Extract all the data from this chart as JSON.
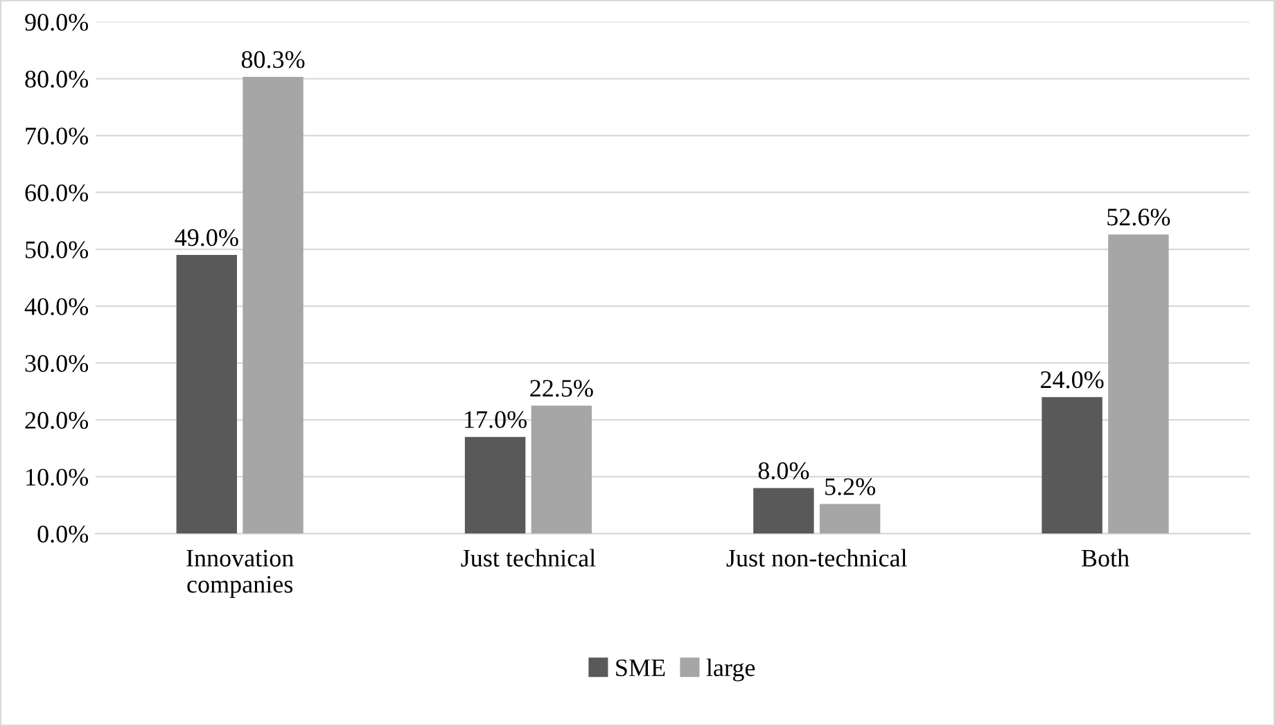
{
  "chart_data": {
    "type": "bar",
    "categories": [
      "Innovation\ncompanies",
      "Just technical",
      "Just non-technical",
      "Both"
    ],
    "series": [
      {
        "name": "SME",
        "color": "#595959",
        "values": [
          49.0,
          17.0,
          8.0,
          24.0
        ],
        "value_labels": [
          "49.0%",
          "17.0%",
          "8.0%",
          "24.0%"
        ]
      },
      {
        "name": "large",
        "color": "#a6a6a6",
        "values": [
          80.3,
          22.5,
          5.2,
          52.6
        ],
        "value_labels": [
          "80.3%",
          "22.5%",
          "5.2%",
          "52.6%"
        ]
      }
    ],
    "ylim": [
      0,
      90
    ],
    "yticks": [
      {
        "value": 0,
        "label": "0.0%"
      },
      {
        "value": 10,
        "label": "10.0%"
      },
      {
        "value": 20,
        "label": "20.0%"
      },
      {
        "value": 30,
        "label": "30.0%"
      },
      {
        "value": 40,
        "label": "40.0%"
      },
      {
        "value": 50,
        "label": "50.0%"
      },
      {
        "value": 60,
        "label": "60.0%"
      },
      {
        "value": 70,
        "label": "70.0%"
      },
      {
        "value": 80,
        "label": "80.0%"
      },
      {
        "value": 90,
        "label": "90.0%"
      }
    ],
    "grid": "y",
    "legend": "bottom"
  }
}
